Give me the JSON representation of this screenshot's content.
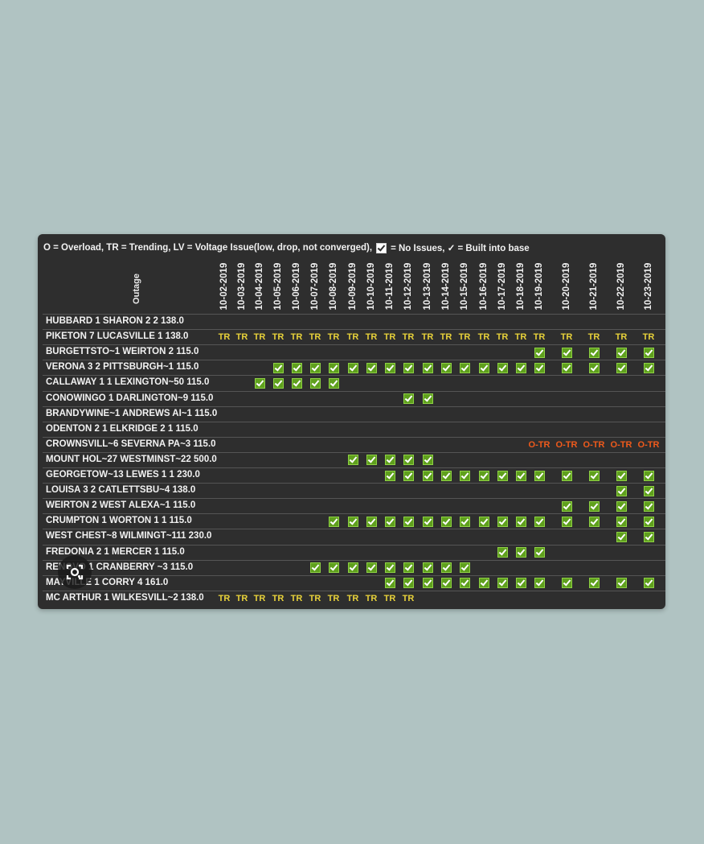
{
  "legend": {
    "text_before": "O = Overload, TR = Trending, LV = Voltage Issue(low, drop, not converged),",
    "text_after": "= No Issues, ✓ = Built into base"
  },
  "table": {
    "outage_header": "Outage",
    "dates": [
      "10-02-2019",
      "10-03-2019",
      "10-04-2019",
      "10-05-2019",
      "10-06-2019",
      "10-07-2019",
      "10-08-2019",
      "10-09-2019",
      "10-10-2019",
      "10-11-2019",
      "10-12-2019",
      "10-13-2019",
      "10-14-2019",
      "10-15-2019",
      "10-16-2019",
      "10-17-2019",
      "10-18-2019",
      "10-19-2019",
      "10-20-2019",
      "10-21-2019",
      "10-22-2019",
      "10-23-2019"
    ],
    "rows": [
      {
        "label": "HUBBARD 1 SHARON 2 2 138.0",
        "cells": [
          "",
          "",
          "",
          "",
          "",
          "",
          "",
          "",
          "",
          "",
          "",
          "",
          "",
          "",
          "",
          "",
          "",
          "",
          "",
          "",
          "",
          ""
        ]
      },
      {
        "label": "PIKETON 7 LUCASVILLE 1 138.0",
        "cells": [
          "TR",
          "TR",
          "TR",
          "TR",
          "TR",
          "TR",
          "TR",
          "TR",
          "TR",
          "TR",
          "TR",
          "TR",
          "TR",
          "TR",
          "TR",
          "TR",
          "TR",
          "TR",
          "TR",
          "TR",
          "TR",
          "TR"
        ]
      },
      {
        "label": "BURGETTSTO~1 WEIRTON 2 115.0",
        "cells": [
          "",
          "",
          "",
          "",
          "",
          "",
          "",
          "",
          "",
          "",
          "",
          "",
          "",
          "",
          "",
          "",
          "",
          "C",
          "C",
          "C",
          "C",
          "C"
        ]
      },
      {
        "label": "VERONA 3 2 PITTSBURGH~1 115.0",
        "cells": [
          "",
          "",
          "",
          "C",
          "C",
          "C",
          "C",
          "C",
          "C",
          "C",
          "C",
          "C",
          "C",
          "C",
          "C",
          "C",
          "C",
          "C",
          "C",
          "C",
          "C",
          "C"
        ]
      },
      {
        "label": "CALLAWAY 1 1 LEXINGTON~50 115.0",
        "cells": [
          "",
          "",
          "C",
          "C",
          "C",
          "C",
          "C",
          "",
          "",
          "",
          "",
          "",
          "",
          "",
          "",
          "",
          "",
          "",
          "",
          "",
          "",
          ""
        ]
      },
      {
        "label": "CONOWINGO 1 DARLINGTON~9 115.0",
        "cells": [
          "",
          "",
          "",
          "",
          "",
          "",
          "",
          "",
          "",
          "",
          "C",
          "C",
          "",
          "",
          "",
          "",
          "",
          "",
          "",
          "",
          "",
          ""
        ]
      },
      {
        "label": "BRANDYWINE~1 ANDREWS AI~1 115.0",
        "cells": [
          "",
          "",
          "",
          "",
          "",
          "",
          "",
          "",
          "",
          "",
          "",
          "",
          "",
          "",
          "",
          "",
          "",
          "",
          "",
          "",
          "",
          ""
        ]
      },
      {
        "label": "ODENTON 2 1 ELKRIDGE 2 1 115.0",
        "cells": [
          "",
          "",
          "",
          "",
          "",
          "",
          "",
          "",
          "",
          "",
          "",
          "",
          "",
          "",
          "",
          "",
          "",
          "",
          "",
          "",
          "",
          ""
        ]
      },
      {
        "label": "CROWNSVILL~6 SEVERNA PA~3 115.0",
        "cells": [
          "",
          "",
          "",
          "",
          "",
          "",
          "",
          "",
          "",
          "",
          "",
          "",
          "",
          "",
          "",
          "",
          "",
          "O-TR",
          "O-TR",
          "O-TR",
          "O-TR",
          "O-TR"
        ]
      },
      {
        "label": "MOUNT HOL~27 WESTMINST~22 500.0",
        "cells": [
          "",
          "",
          "",
          "",
          "",
          "",
          "",
          "C",
          "C",
          "C",
          "C",
          "C",
          "",
          "",
          "",
          "",
          "",
          "",
          "",
          "",
          "",
          ""
        ]
      },
      {
        "label": "GEORGETOW~13 LEWES 1 1 230.0",
        "cells": [
          "",
          "",
          "",
          "",
          "",
          "",
          "",
          "",
          "",
          "C",
          "C",
          "C",
          "C",
          "C",
          "C",
          "C",
          "C",
          "C",
          "C",
          "C",
          "C",
          "C"
        ]
      },
      {
        "label": "LOUISA 3 2 CATLETTSBU~4 138.0",
        "cells": [
          "",
          "",
          "",
          "",
          "",
          "",
          "",
          "",
          "",
          "",
          "",
          "",
          "",
          "",
          "",
          "",
          "",
          "",
          "",
          "",
          "C",
          "C"
        ]
      },
      {
        "label": "WEIRTON 2 WEST ALEXA~1 115.0",
        "cells": [
          "",
          "",
          "",
          "",
          "",
          "",
          "",
          "",
          "",
          "",
          "",
          "",
          "",
          "",
          "",
          "",
          "",
          "",
          "C",
          "C",
          "C",
          "C"
        ]
      },
      {
        "label": "CRUMPTON 1 WORTON 1 1 115.0",
        "cells": [
          "",
          "",
          "",
          "",
          "",
          "",
          "C",
          "C",
          "C",
          "C",
          "C",
          "C",
          "C",
          "C",
          "C",
          "C",
          "C",
          "C",
          "C",
          "C",
          "C",
          "C"
        ]
      },
      {
        "label": "WEST CHEST~8 WILMINGT~111 230.0",
        "cells": [
          "",
          "",
          "",
          "",
          "",
          "",
          "",
          "",
          "",
          "",
          "",
          "",
          "",
          "",
          "",
          "",
          "",
          "",
          "",
          "",
          "C",
          "C"
        ]
      },
      {
        "label": "FREDONIA 2 1 MERCER 1 115.0",
        "cells": [
          "",
          "",
          "",
          "",
          "",
          "",
          "",
          "",
          "",
          "",
          "",
          "",
          "",
          "",
          "",
          "C",
          "C",
          "C",
          "",
          "",
          "",
          ""
        ]
      },
      {
        "label": "RENOVO 1 CRANBERRY ~3 115.0",
        "cells": [
          "",
          "",
          "",
          "",
          "",
          "C",
          "C",
          "C",
          "C",
          "C",
          "C",
          "C",
          "C",
          "C",
          "",
          "",
          "",
          "",
          "",
          "",
          "",
          ""
        ]
      },
      {
        "label": "MAYVILLE 1 CORRY 4 161.0",
        "cells": [
          "",
          "",
          "",
          "",
          "",
          "",
          "",
          "",
          "",
          "C",
          "C",
          "C",
          "C",
          "C",
          "C",
          "C",
          "C",
          "C",
          "C",
          "C",
          "C",
          "C"
        ]
      },
      {
        "label": "MC ARTHUR 1 WILKESVILL~2 138.0",
        "cells": [
          "TR",
          "TR",
          "TR",
          "TR",
          "TR",
          "TR",
          "TR",
          "TR",
          "TR",
          "TR",
          "TR",
          "",
          "",
          "",
          "",
          "",
          "",
          "",
          "",
          "",
          "",
          ""
        ]
      }
    ]
  },
  "icons": {
    "overlay": "lens-icon",
    "legend_box": "checkbox-icon"
  },
  "colors": {
    "background": "#b0c3c2",
    "panel": "#2e2e2e",
    "check": "#5fa01d",
    "trending": "#e8d23a",
    "overload": "#ef5a1c"
  }
}
